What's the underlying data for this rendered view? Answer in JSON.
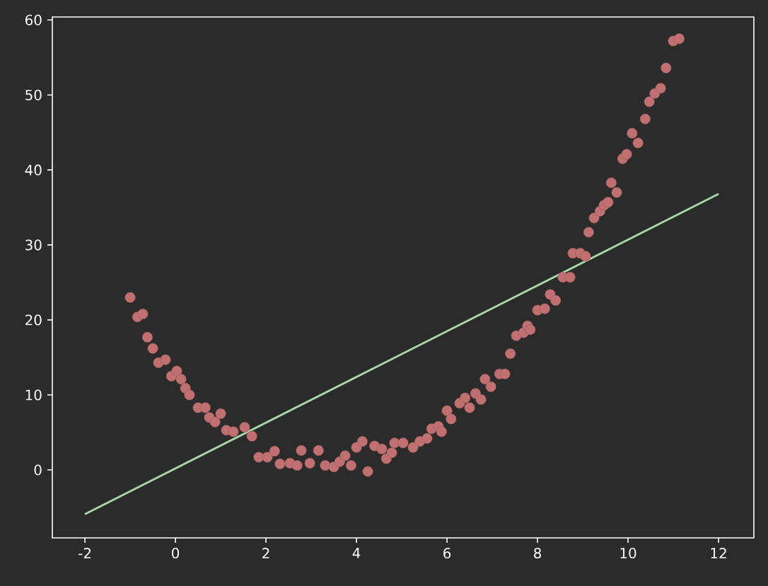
{
  "chart_data": {
    "type": "scatter",
    "xlim": [
      -2.72,
      12.78
    ],
    "ylim": [
      -9.06,
      60.4
    ],
    "xticks": [
      -2,
      0,
      2,
      4,
      6,
      8,
      10,
      12
    ],
    "yticks": [
      0,
      10,
      20,
      30,
      40,
      50,
      60
    ],
    "grid": false,
    "series": [
      {
        "marker": "circle",
        "color": "#c07070",
        "x": [
          -1.0,
          -0.84,
          -0.72,
          -0.62,
          -0.5,
          -0.375,
          -0.22,
          -0.09,
          0.03,
          0.125,
          0.22,
          0.31,
          0.5,
          0.66,
          0.75,
          0.875,
          1.0,
          1.125,
          1.28,
          1.53,
          1.69,
          1.84,
          2.03,
          2.19,
          2.31,
          2.53,
          2.69,
          2.78,
          2.97,
          3.16,
          3.31,
          3.5,
          3.63,
          3.75,
          3.88,
          4.0,
          4.13,
          4.25,
          4.4,
          4.56,
          4.66,
          4.78,
          4.84,
          5.03,
          5.25,
          5.4,
          5.56,
          5.66,
          5.81,
          5.88,
          6.0,
          6.09,
          6.28,
          6.4,
          6.5,
          6.63,
          6.75,
          6.84,
          6.97,
          7.16,
          7.28,
          7.4,
          7.53,
          7.69,
          7.78,
          7.84,
          8.0,
          8.16,
          8.28,
          8.4,
          8.56,
          8.72,
          8.78,
          8.94,
          9.06,
          9.13,
          9.25,
          9.38,
          9.47,
          9.56,
          9.63,
          9.75,
          9.88,
          9.97,
          10.09,
          10.22,
          10.38,
          10.47,
          10.59,
          10.72,
          10.84,
          11.0,
          11.13
        ],
        "values": [
          23.0,
          20.4,
          20.8,
          17.7,
          16.2,
          14.3,
          14.7,
          12.5,
          13.2,
          12.1,
          10.9,
          10.0,
          8.3,
          8.3,
          7.0,
          6.4,
          7.5,
          5.3,
          5.1,
          5.7,
          4.5,
          1.7,
          1.7,
          2.5,
          0.8,
          0.9,
          0.6,
          2.6,
          0.9,
          2.6,
          0.6,
          0.4,
          1.1,
          1.9,
          0.6,
          3.0,
          3.8,
          -0.2,
          3.2,
          2.8,
          1.5,
          2.3,
          3.6,
          3.6,
          3.0,
          3.8,
          4.2,
          5.5,
          5.8,
          5.1,
          7.9,
          6.8,
          8.9,
          9.6,
          8.3,
          10.2,
          9.4,
          12.1,
          11.1,
          12.8,
          12.8,
          15.5,
          17.9,
          18.3,
          19.2,
          18.7,
          21.3,
          21.5,
          23.4,
          22.6,
          25.7,
          25.7,
          28.9,
          28.9,
          28.5,
          31.7,
          33.6,
          34.5,
          35.3,
          35.7,
          38.3,
          37.0,
          41.5,
          42.1,
          44.9,
          43.6,
          46.8,
          49.1,
          50.2,
          50.9,
          53.6,
          57.2,
          57.5
        ]
      },
      {
        "type": "line",
        "marker": "none",
        "color": "#a8d8a8",
        "x": [
          -2,
          12
        ],
        "values": [
          -5.9,
          36.8
        ]
      }
    ]
  }
}
